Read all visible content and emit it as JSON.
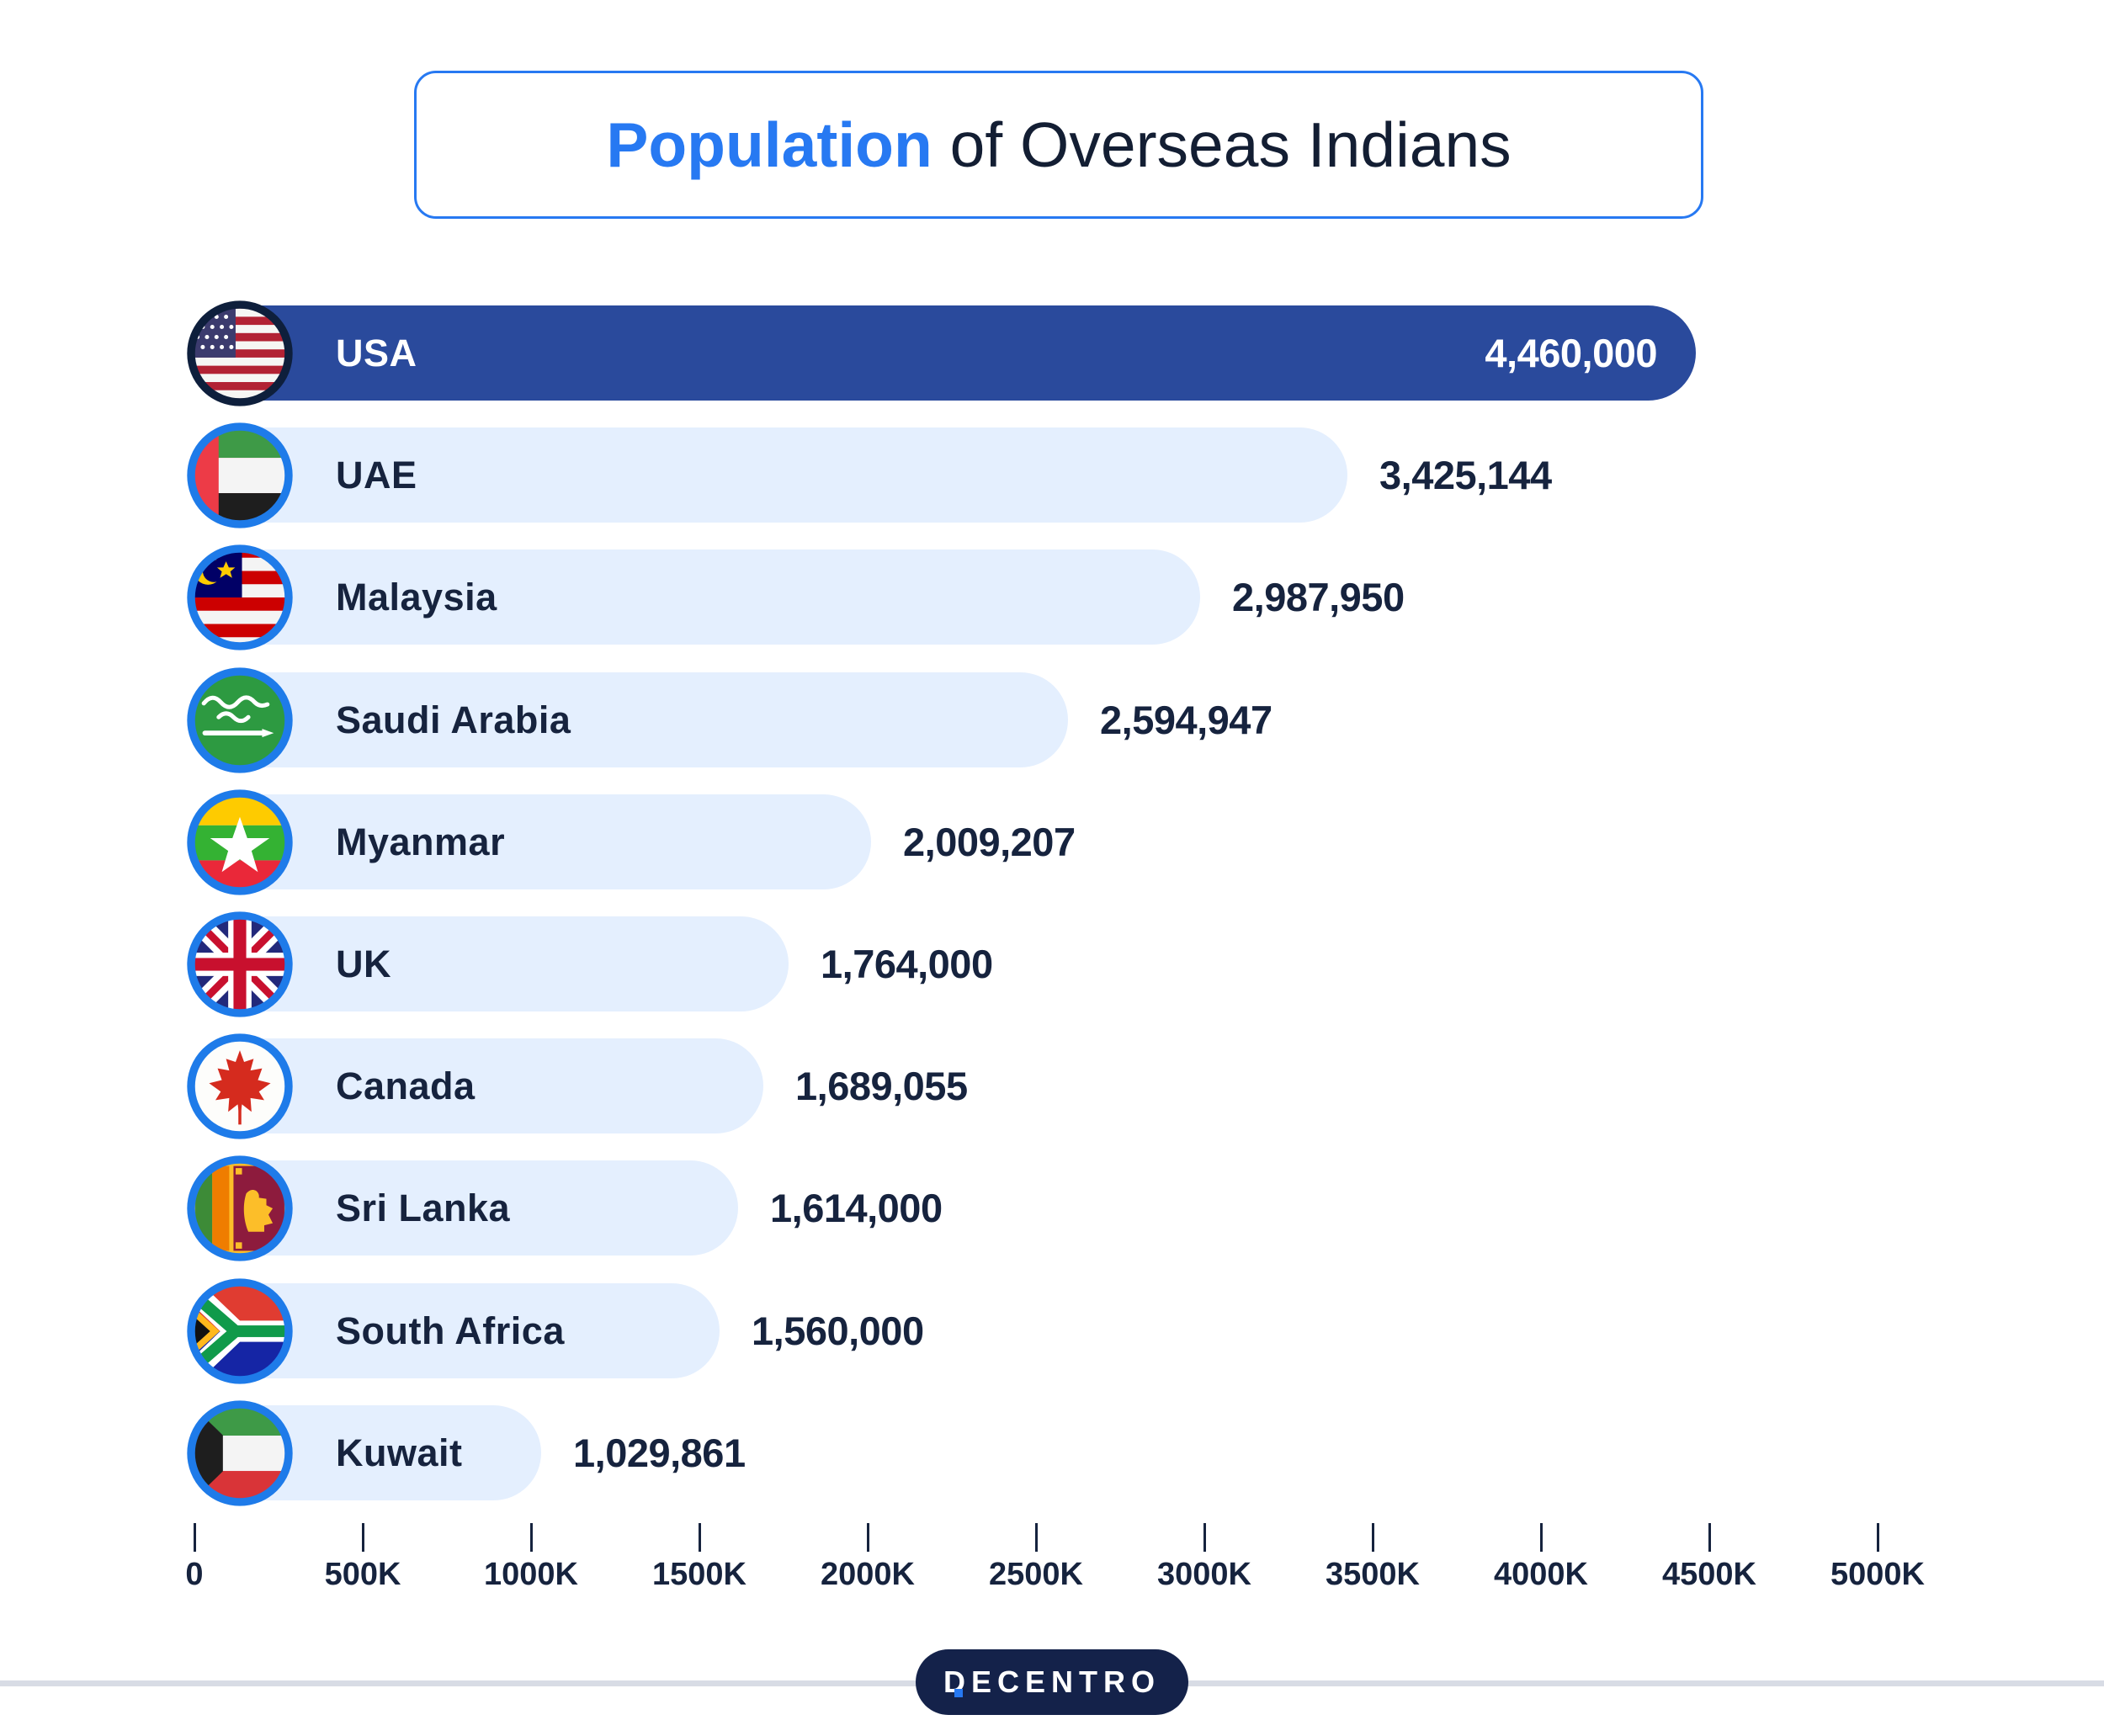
{
  "title": {
    "highlight": "Population",
    "rest": " of Overseas Indians"
  },
  "chart_data": {
    "type": "bar",
    "orientation": "horizontal",
    "title": "Population of Overseas Indians",
    "xlabel": "",
    "ylabel": "",
    "categories": [
      "USA",
      "UAE",
      "Malaysia",
      "Saudi Arabia",
      "Myanmar",
      "UK",
      "Canada",
      "Sri Lanka",
      "South Africa",
      "Kuwait"
    ],
    "values": [
      4460000,
      3425144,
      2987950,
      2594947,
      2009207,
      1764000,
      1689055,
      1614000,
      1560000,
      1029861
    ],
    "value_labels": [
      "4,460,000",
      "3,425,144",
      "2,987,950",
      "2,594,947",
      "2,009,207",
      "1,764,000",
      "1,689,055",
      "1,614,000",
      "1,560,000",
      "1,029,861"
    ],
    "xlim": [
      0,
      5000000
    ],
    "x_tick_labels": [
      "0",
      "500K",
      "1000K",
      "1500K",
      "2000K",
      "2500K",
      "3000K",
      "3500K",
      "4000K",
      "4500K",
      "5000K"
    ],
    "grid": false,
    "legend": "none",
    "highlight_index": 0
  },
  "rows": [
    {
      "country": "USA",
      "value": 4460000,
      "value_label": "4,460,000",
      "flag": "usa-flag-icon",
      "emphasized": true
    },
    {
      "country": "UAE",
      "value": 3425144,
      "value_label": "3,425,144",
      "flag": "uae-flag-icon",
      "emphasized": false
    },
    {
      "country": "Malaysia",
      "value": 2987950,
      "value_label": "2,987,950",
      "flag": "malaysia-flag-icon",
      "emphasized": false
    },
    {
      "country": "Saudi Arabia",
      "value": 2594947,
      "value_label": "2,594,947",
      "flag": "saudi-arabia-flag-icon",
      "emphasized": false
    },
    {
      "country": "Myanmar",
      "value": 2009207,
      "value_label": "2,009,207",
      "flag": "myanmar-flag-icon",
      "emphasized": false
    },
    {
      "country": "UK",
      "value": 1764000,
      "value_label": "1,764,000",
      "flag": "uk-flag-icon",
      "emphasized": false
    },
    {
      "country": "Canada",
      "value": 1689055,
      "value_label": "1,689,055",
      "flag": "canada-flag-icon",
      "emphasized": false
    },
    {
      "country": "Sri Lanka",
      "value": 1614000,
      "value_label": "1,614,000",
      "flag": "sri-lanka-flag-icon",
      "emphasized": false
    },
    {
      "country": "South Africa",
      "value": 1560000,
      "value_label": "1,560,000",
      "flag": "south-africa-flag-icon",
      "emphasized": false
    },
    {
      "country": "Kuwait",
      "value": 1029861,
      "value_label": "1,029,861",
      "flag": "kuwait-flag-icon",
      "emphasized": false
    }
  ],
  "footer": {
    "brand": "DECENTRO"
  },
  "colors": {
    "accent_blue": "#2779F2",
    "dark_navy": "#16233E",
    "bar_highlight": "#2A4A9C",
    "bar_light": "#E4EFFE",
    "flag_ring": "#1E7BE9",
    "flag_ring_dark": "#0E1F3C",
    "footer_pill": "#14224A",
    "divider": "#D8DCE5"
  }
}
